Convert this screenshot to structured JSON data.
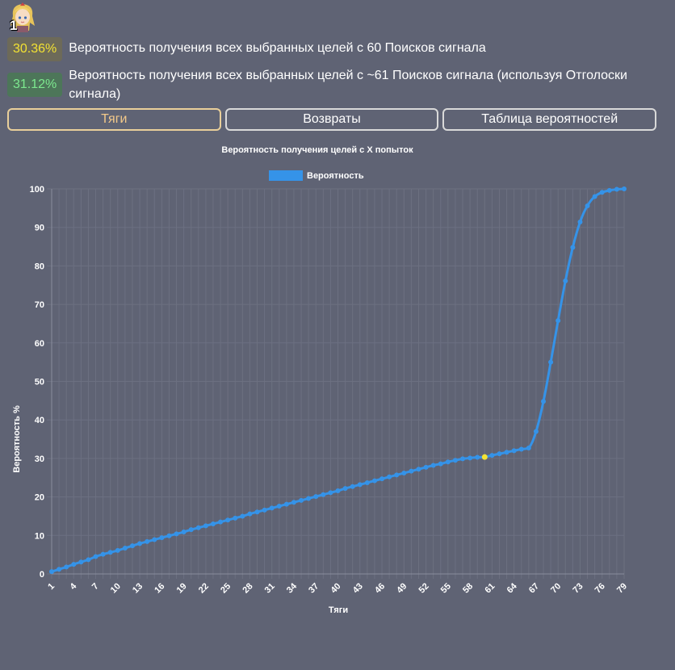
{
  "avatar": {
    "count": "1",
    "icon": "character-avatar-icon"
  },
  "stats": [
    {
      "value": "30.36%",
      "text": "Вероятность получения всех выбранных целей с 60 Поисков сигнала",
      "color": "#f3e233"
    },
    {
      "value": "31.12%",
      "text": "Вероятность получения всех выбранных целей с ~61 Поисков сигнала (используя Отголоски сигнала)",
      "color": "#7de88f"
    }
  ],
  "tabs": [
    {
      "label": "Тяги",
      "active": true
    },
    {
      "label": "Возвраты",
      "active": false
    },
    {
      "label": "Таблица вероятностей",
      "active": false
    }
  ],
  "chart_data": {
    "type": "line",
    "title": "Вероятность получения целей с X попыток",
    "xlabel": "Тяги",
    "ylabel": "Вероятность %",
    "legend": {
      "position": "top",
      "entries": [
        "Вероятность"
      ]
    },
    "series_color": "#3593e8",
    "highlight": {
      "x": 60,
      "color": "#f3e233"
    },
    "grid": true,
    "ylim": [
      0,
      100
    ],
    "yticks": [
      0,
      10,
      20,
      30,
      40,
      50,
      60,
      70,
      80,
      90,
      100
    ],
    "xticks": [
      1,
      4,
      7,
      10,
      13,
      16,
      19,
      22,
      25,
      28,
      31,
      34,
      37,
      40,
      43,
      46,
      49,
      52,
      55,
      58,
      61,
      64,
      67,
      70,
      73,
      76,
      79
    ],
    "series": [
      {
        "name": "Вероятность",
        "x": [
          1,
          2,
          3,
          4,
          5,
          6,
          7,
          8,
          9,
          10,
          11,
          12,
          13,
          14,
          15,
          16,
          17,
          18,
          19,
          20,
          21,
          22,
          23,
          24,
          25,
          26,
          27,
          28,
          29,
          30,
          31,
          32,
          33,
          34,
          35,
          36,
          37,
          38,
          39,
          40,
          41,
          42,
          43,
          44,
          45,
          46,
          47,
          48,
          49,
          50,
          51,
          52,
          53,
          54,
          55,
          56,
          57,
          58,
          59,
          60,
          61,
          62,
          63,
          64,
          65,
          66,
          67,
          68,
          69,
          70,
          71,
          72,
          73,
          74,
          75,
          76,
          77,
          78,
          79
        ],
        "values": [
          0.6,
          1.2,
          1.8,
          2.5,
          3.1,
          3.7,
          4.5,
          5.1,
          5.6,
          6.1,
          6.7,
          7.3,
          7.9,
          8.4,
          8.9,
          9.4,
          9.9,
          10.4,
          10.9,
          11.5,
          12.0,
          12.5,
          13.0,
          13.5,
          14.0,
          14.5,
          15.0,
          15.6,
          16.1,
          16.6,
          17.1,
          17.6,
          18.1,
          18.6,
          19.1,
          19.6,
          20.1,
          20.6,
          21.1,
          21.6,
          22.2,
          22.7,
          23.2,
          23.7,
          24.2,
          24.7,
          25.2,
          25.7,
          26.2,
          26.7,
          27.2,
          27.7,
          28.2,
          28.6,
          29.1,
          29.5,
          29.9,
          30.1,
          30.3,
          30.36,
          30.8,
          31.2,
          31.6,
          32.0,
          32.4,
          32.7,
          37.0,
          44.8,
          55.0,
          65.8,
          76.1,
          84.8,
          91.4,
          95.6,
          98.0,
          99.1,
          99.6,
          99.9,
          100
        ]
      }
    ]
  }
}
